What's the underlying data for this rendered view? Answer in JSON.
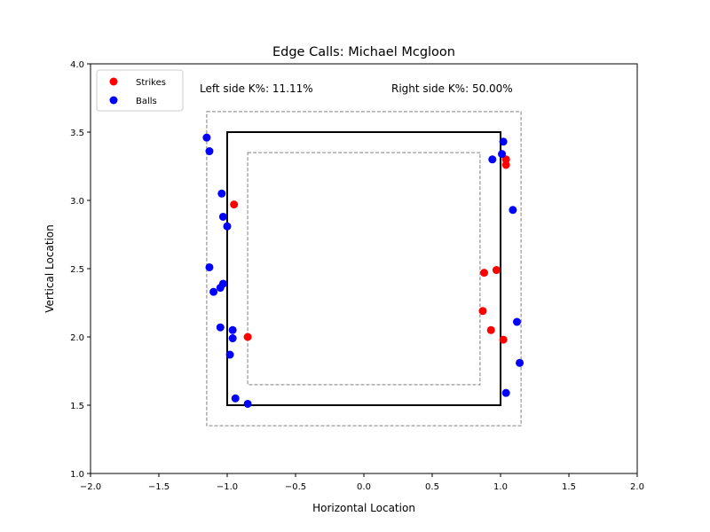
{
  "chart_data": {
    "type": "scatter",
    "title": "Edge Calls: Michael Mcgloon",
    "xlabel": "Horizontal Location",
    "ylabel": "Vertical Location",
    "xlim": [
      -2.0,
      2.0
    ],
    "ylim": [
      1.0,
      4.0
    ],
    "xticks": [
      "−2.0",
      "−1.5",
      "−1.0",
      "−0.5",
      "0.0",
      "0.5",
      "1.0",
      "1.5",
      "2.0"
    ],
    "yticks": [
      "1.0",
      "1.5",
      "2.0",
      "2.5",
      "3.0",
      "3.5",
      "4.0"
    ],
    "grid": false,
    "legend_position": "top-left",
    "annotations": {
      "left": "Left side K%: 11.11%",
      "right": "Right side K%: 50.00%"
    },
    "zones": {
      "strike_zone": {
        "x": [
          -1.0,
          1.0
        ],
        "y": [
          1.5,
          3.5
        ],
        "color": "#000000"
      },
      "outer_edge": {
        "x": [
          -1.15,
          1.15
        ],
        "y": [
          1.35,
          3.65
        ],
        "color": "#808080"
      },
      "inner_edge": {
        "x": [
          -0.85,
          0.85
        ],
        "y": [
          1.65,
          3.35
        ],
        "color": "#808080"
      }
    },
    "series": [
      {
        "name": "Strikes",
        "color": "#ff0000",
        "points": [
          {
            "x": -0.95,
            "y": 2.97
          },
          {
            "x": -0.85,
            "y": 2.0
          },
          {
            "x": 0.88,
            "y": 2.47
          },
          {
            "x": 0.97,
            "y": 2.49
          },
          {
            "x": 0.87,
            "y": 2.19
          },
          {
            "x": 0.93,
            "y": 2.05
          },
          {
            "x": 1.02,
            "y": 1.98
          },
          {
            "x": 1.04,
            "y": 3.3
          },
          {
            "x": 1.04,
            "y": 3.26
          }
        ]
      },
      {
        "name": "Balls",
        "color": "#0000ff",
        "points": [
          {
            "x": -1.15,
            "y": 3.46
          },
          {
            "x": -1.13,
            "y": 3.36
          },
          {
            "x": -1.04,
            "y": 3.05
          },
          {
            "x": -1.03,
            "y": 2.88
          },
          {
            "x": -1.0,
            "y": 2.81
          },
          {
            "x": -1.13,
            "y": 2.51
          },
          {
            "x": -1.1,
            "y": 2.33
          },
          {
            "x": -1.05,
            "y": 2.36
          },
          {
            "x": -1.03,
            "y": 2.39
          },
          {
            "x": -1.05,
            "y": 2.07
          },
          {
            "x": -0.96,
            "y": 2.05
          },
          {
            "x": -0.96,
            "y": 1.99
          },
          {
            "x": -0.98,
            "y": 1.87
          },
          {
            "x": -0.94,
            "y": 1.55
          },
          {
            "x": -0.85,
            "y": 1.51
          },
          {
            "x": 1.02,
            "y": 3.43
          },
          {
            "x": 1.01,
            "y": 3.34
          },
          {
            "x": 0.94,
            "y": 3.3
          },
          {
            "x": 1.09,
            "y": 2.93
          },
          {
            "x": 1.12,
            "y": 2.11
          },
          {
            "x": 1.14,
            "y": 1.81
          },
          {
            "x": 1.04,
            "y": 1.59
          }
        ]
      }
    ]
  }
}
